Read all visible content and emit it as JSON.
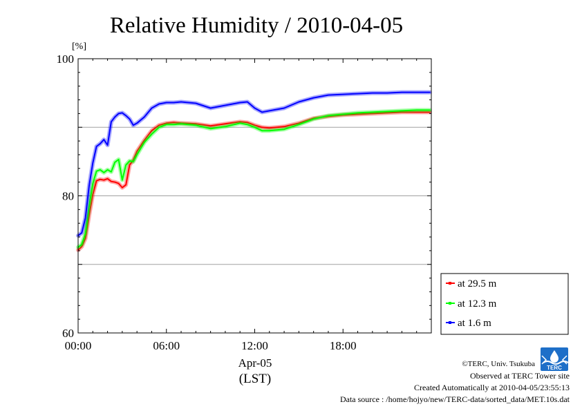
{
  "chart_data": {
    "type": "line",
    "title": "Relative Humidity / 2010-04-05",
    "ylabel_unit": "[%]",
    "xlabel_date": "Apr-05",
    "xlabel_tz": "(LST)",
    "xlim": [
      0,
      24
    ],
    "ylim": [
      60,
      100
    ],
    "xticks": [
      0,
      6,
      12,
      18
    ],
    "xtick_labels": [
      "00:00",
      "06:00",
      "12:00",
      "18:00"
    ],
    "yticks": [
      60,
      80,
      100
    ],
    "ytick_labels": [
      "60",
      "80",
      "100"
    ],
    "grid": true,
    "legend_position": "bottom-right, outside plot",
    "x_hours": [
      0.0,
      0.25,
      0.5,
      0.75,
      1.0,
      1.25,
      1.5,
      1.75,
      2.0,
      2.25,
      2.5,
      2.75,
      3.0,
      3.25,
      3.5,
      3.75,
      4.0,
      4.5,
      5.0,
      5.5,
      6.0,
      6.5,
      7.0,
      8.0,
      9.0,
      10.0,
      11.0,
      11.5,
      12.0,
      12.5,
      13.0,
      14.0,
      15.0,
      16.0,
      17.0,
      18.0,
      19.0,
      20.0,
      21.0,
      22.0,
      23.0,
      23.9
    ],
    "series": [
      {
        "name": "at 29.5 m",
        "color": "#ff0000",
        "values": [
          72.1,
          72.6,
          73.8,
          77.2,
          80.2,
          82.2,
          82.4,
          82.3,
          82.5,
          82.1,
          82.0,
          81.8,
          81.2,
          81.6,
          84.5,
          85.2,
          86.5,
          88.1,
          89.5,
          90.3,
          90.6,
          90.7,
          90.6,
          90.5,
          90.2,
          90.5,
          90.8,
          90.7,
          90.3,
          90.0,
          89.9,
          90.1,
          90.6,
          91.3,
          91.6,
          91.8,
          91.9,
          92.0,
          92.1,
          92.2,
          92.2,
          92.2
        ]
      },
      {
        "name": "at 12.3 m",
        "color": "#00ff00",
        "values": [
          72.5,
          72.9,
          74.5,
          78.5,
          81.8,
          83.6,
          83.8,
          83.4,
          83.8,
          83.5,
          84.9,
          85.3,
          82.3,
          84.5,
          85.1,
          85.0,
          86.0,
          87.8,
          89.0,
          90.0,
          90.4,
          90.4,
          90.5,
          90.3,
          89.8,
          90.1,
          90.6,
          90.4,
          90.0,
          89.5,
          89.5,
          89.7,
          90.4,
          91.2,
          91.7,
          91.9,
          92.1,
          92.2,
          92.3,
          92.4,
          92.5,
          92.5
        ]
      },
      {
        "name": "at 1.6 m",
        "color": "#0000ff",
        "values": [
          74.2,
          74.6,
          76.8,
          81.5,
          84.8,
          87.2,
          87.6,
          88.2,
          87.4,
          90.8,
          91.5,
          92.0,
          92.1,
          91.7,
          91.2,
          90.3,
          90.6,
          91.5,
          92.8,
          93.4,
          93.6,
          93.6,
          93.7,
          93.5,
          92.8,
          93.2,
          93.6,
          93.7,
          92.8,
          92.2,
          92.4,
          92.8,
          93.7,
          94.3,
          94.7,
          94.8,
          94.9,
          95.0,
          95.0,
          95.1,
          95.1,
          95.1
        ]
      }
    ]
  },
  "credits": {
    "copyright": "©TERC, Univ. Tsukuba",
    "site": "Observed at TERC Tower site",
    "created": "Created Automatically at 2010-04-05/23:55:13",
    "source": "Data source : /home/hojyo/new/TERC-data/sorted_data/MET.10s.dat",
    "logo_text": "TERC",
    "logo_icon": "terc-logo"
  }
}
